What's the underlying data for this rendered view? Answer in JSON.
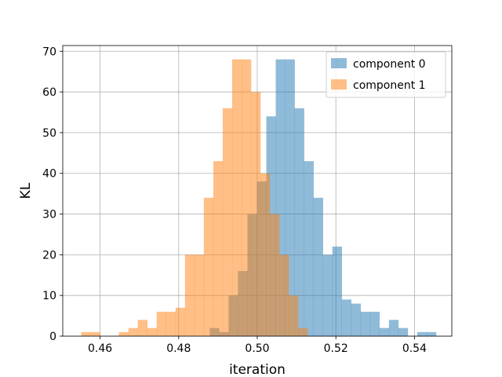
{
  "chart_data": {
    "type": "bar",
    "title": "",
    "xlabel": "iteration",
    "ylabel": "KL",
    "xlim": [
      0.4505,
      0.5495
    ],
    "ylim": [
      0,
      71.4
    ],
    "xticks": [
      "0.46",
      "0.48",
      "0.50",
      "0.52",
      "0.54"
    ],
    "xtick_values": [
      0.46,
      0.48,
      0.5,
      0.52,
      0.54
    ],
    "yticks": [
      "0",
      "10",
      "20",
      "30",
      "40",
      "50",
      "60",
      "70"
    ],
    "ytick_values": [
      0,
      10,
      20,
      30,
      40,
      50,
      60,
      70
    ],
    "grid": true,
    "legend_position": "top-right",
    "series": [
      {
        "name": "component 0",
        "color": "#1f77b4",
        "opacity": 0.5,
        "bin_start": 0.4855,
        "bin_width": 0.0024,
        "values": [
          0,
          2,
          1,
          10,
          16,
          30,
          38,
          54,
          68,
          68,
          56,
          43,
          34,
          20,
          22,
          9,
          8,
          6,
          6,
          2,
          4,
          2,
          0,
          1,
          1
        ]
      },
      {
        "name": "component 1",
        "color": "#ff7f0e",
        "opacity": 0.5,
        "bin_start": 0.4552,
        "bin_width": 0.0024,
        "values": [
          1,
          1,
          0,
          0,
          1,
          2,
          4,
          2,
          6,
          6,
          7,
          20,
          20,
          34,
          43,
          56,
          68,
          68,
          60,
          40,
          30,
          20,
          10,
          2
        ]
      }
    ]
  }
}
